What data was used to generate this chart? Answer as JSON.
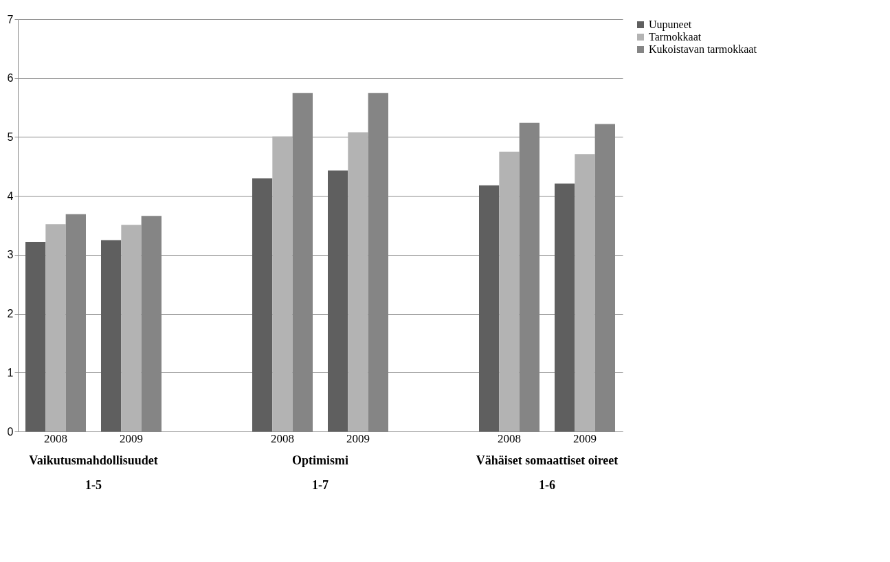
{
  "chart_data": {
    "type": "bar",
    "categories": [
      "2008",
      "2009",
      null,
      "2008",
      "2009",
      null,
      "2008",
      "2009"
    ],
    "series": [
      {
        "name": "Uupuneet",
        "color": "#5f5f5f",
        "values": [
          3.22,
          3.25,
          null,
          4.3,
          4.43,
          null,
          4.18,
          4.21
        ]
      },
      {
        "name": "Tarmokkaat",
        "color": "#b3b3b3",
        "values": [
          3.52,
          3.51,
          null,
          5.01,
          5.08,
          null,
          4.75,
          4.71
        ]
      },
      {
        "name": "Kukoistavan tarmokkaat",
        "color": "#858585",
        "values": [
          3.69,
          3.66,
          null,
          5.75,
          5.75,
          null,
          5.24,
          5.22
        ]
      }
    ],
    "annotations": [
      "Vaikutusmahdollisuudet\n1-5",
      "Optimismi\n1-7",
      "Vähäiset somaattiset oireet\n1-6"
    ],
    "ylim": [
      0,
      7
    ],
    "yticks": [
      0,
      1,
      2,
      3,
      4,
      5,
      6,
      7
    ],
    "grid": "y",
    "legend": "right"
  }
}
